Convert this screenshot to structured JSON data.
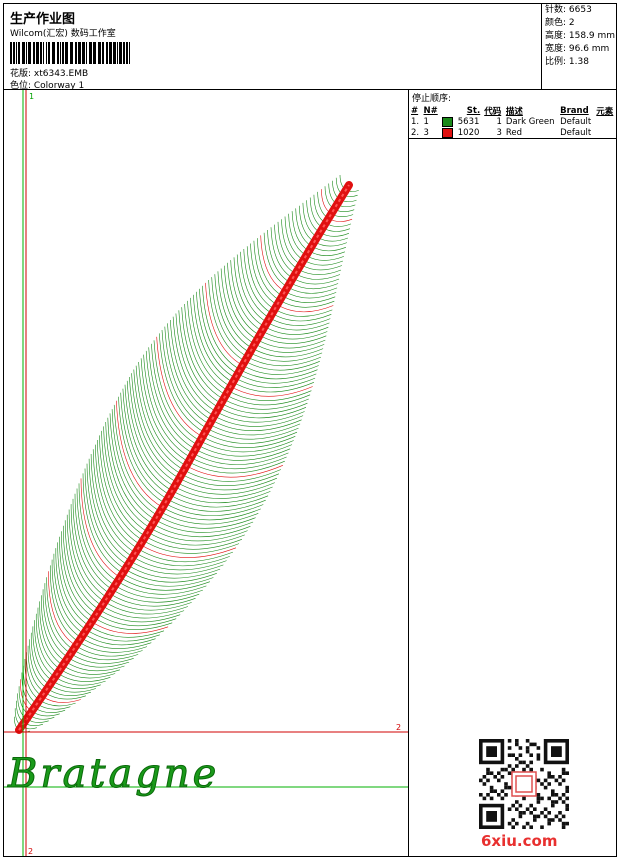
{
  "header": {
    "title": "生产作业图",
    "studio": "Wilcom(汇宏) 数码工作室",
    "file_label": "花版: xt6343.EMB",
    "colorway_label": "色位: Colorway 1"
  },
  "stats": {
    "stitches": "针数: 6653",
    "colors": "颜色: 2",
    "height": "高度: 158.9 mm",
    "width": "宽度: 96.6 mm",
    "scale": "比例: 1.38"
  },
  "stop_sequence": {
    "caption": "停止顺序:",
    "columns": [
      "#",
      "N#",
      "St.",
      "代码",
      "描述",
      "Brand",
      "元素"
    ],
    "rows": [
      {
        "index": "1.",
        "needle": "1",
        "color": "#1a8a1a",
        "stitches": "5631",
        "code": "1",
        "description": "Dark Green",
        "brand": "Default"
      },
      {
        "index": "2.",
        "needle": "3",
        "color": "#e01010",
        "stitches": "1020",
        "code": "3",
        "description": "Red",
        "brand": "Default"
      }
    ]
  },
  "design": {
    "text": "Bratagne",
    "text_color": "#1a9a1a",
    "marker_top": "1",
    "marker_right": "2",
    "marker_bottom": "2"
  },
  "watermark": "6xiu.com",
  "colors": {
    "green": "#1a8a1a",
    "red": "#e01010",
    "guide_green": "#00b000",
    "guide_red": "#d00000"
  }
}
